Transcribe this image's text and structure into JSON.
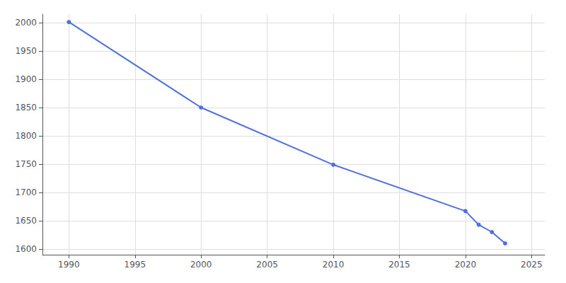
{
  "chart_data": {
    "type": "line",
    "x": [
      1990,
      2000,
      2010,
      2020,
      2021,
      2022,
      2023
    ],
    "values": [
      2001,
      1850,
      1749,
      1667,
      1643,
      1630,
      1610
    ],
    "xlim": [
      1988,
      2026
    ],
    "xticks": [
      1990,
      1995,
      2000,
      2005,
      2010,
      2015,
      2020,
      2025
    ],
    "ylim": [
      1590,
      2015
    ],
    "yticks": [
      1600,
      1650,
      1700,
      1750,
      1800,
      1850,
      1900,
      1950,
      2000
    ],
    "grid": true,
    "marker": "circle"
  }
}
